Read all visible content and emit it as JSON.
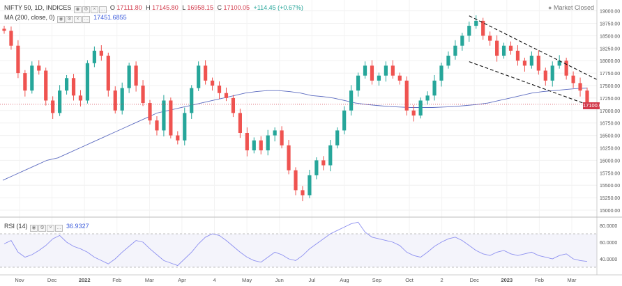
{
  "header": {
    "symbol": "NIFTY 50, 1D, INDICES",
    "open_label": "O",
    "open": "17111.80",
    "high_label": "H",
    "high": "17145.80",
    "low_label": "L",
    "low": "16958.15",
    "close_label": "C",
    "close": "17100.05",
    "change": "+114.45 (+0.67%)",
    "market_status": "Market Closed",
    "last_price_tag": "17100.05"
  },
  "ma": {
    "label": "MA (200, close, 0)",
    "value": "17451.6855"
  },
  "rsi": {
    "label": "RSI (14)",
    "value": "36.9327"
  },
  "colors": {
    "up": "#26a69a",
    "down": "#ef5350",
    "ma": "#5c6bc0",
    "rsi": "#8c8ff0",
    "trendline": "#111111"
  },
  "chart_data": [
    {
      "type": "candlestick",
      "title": "NIFTY 50, 1D, INDICES",
      "x_ticks": [
        "Nov",
        "Dec",
        "2022",
        "Feb",
        "Mar",
        "Apr",
        "4",
        "May",
        "Jun",
        "Jul",
        "Aug",
        "Sep",
        "Oct",
        "2",
        "Dec",
        "2023",
        "Feb",
        "Mar"
      ],
      "y_ticks": [
        15000,
        15250,
        15500,
        15750,
        16000,
        16250,
        16500,
        16750,
        17000,
        17250,
        17500,
        17750,
        18000,
        18250,
        18500,
        18750,
        19000
      ],
      "ylim": [
        15000,
        19050
      ],
      "grid": true,
      "series": [
        {
          "name": "Close (approx.)",
          "values": [
            18600,
            18300,
            17750,
            17400,
            17900,
            17800,
            17200,
            16950,
            17400,
            17650,
            17300,
            17200,
            17950,
            18200,
            18100,
            17400,
            17000,
            17450,
            17900,
            17500,
            17150,
            16800,
            16600,
            17200,
            16500,
            16400,
            16950,
            17450,
            17900,
            17600,
            17500,
            17350,
            17250,
            16950,
            16550,
            16200,
            16400,
            16200,
            16500,
            16600,
            16300,
            15800,
            15400,
            15300,
            15700,
            16000,
            15900,
            16300,
            16600,
            17000,
            17400,
            17700,
            17900,
            17600,
            17700,
            17900,
            17700,
            17600,
            17000,
            16900,
            17200,
            17300,
            17600,
            17900,
            18100,
            18300,
            18500,
            18700,
            18800,
            18500,
            18400,
            18100,
            18300,
            18200,
            18000,
            17900,
            18100,
            17800,
            17600,
            17900,
            18000,
            17700,
            17550,
            17400,
            17100
          ]
        },
        {
          "name": "MA (200, close, 0)",
          "values": [
            15600,
            15700,
            15800,
            15900,
            16000,
            16050,
            16150,
            16250,
            16350,
            16450,
            16550,
            16650,
            16750,
            16850,
            16950,
            17000,
            17050,
            17100,
            17150,
            17200,
            17250,
            17300,
            17350,
            17380,
            17400,
            17400,
            17380,
            17350,
            17300,
            17280,
            17250,
            17200,
            17150,
            17120,
            17100,
            17080,
            17070,
            17060,
            17060,
            17060,
            17070,
            17080,
            17100,
            17120,
            17150,
            17200,
            17250,
            17300,
            17350,
            17380,
            17400,
            17420,
            17440,
            17451
          ]
        }
      ],
      "annotations": [
        "17100.05"
      ],
      "trendlines": [
        {
          "from": {
            "x_index": 67,
            "y": 18900
          },
          "to": {
            "x_index": 84,
            "y": 17720
          }
        },
        {
          "from": {
            "x_index": 67,
            "y": 17980
          },
          "to": {
            "x_index": 84,
            "y": 17120
          }
        }
      ],
      "hline": 17125
    },
    {
      "type": "line",
      "title": "RSI (14)",
      "y_ticks": [
        40,
        60,
        80
      ],
      "ylim": [
        30,
        85
      ],
      "bands": [
        30,
        70
      ],
      "series": [
        {
          "name": "RSI (14)",
          "values": [
            58,
            62,
            48,
            42,
            45,
            50,
            56,
            64,
            68,
            60,
            55,
            52,
            48,
            42,
            38,
            34,
            40,
            48,
            55,
            62,
            60,
            52,
            45,
            38,
            35,
            32,
            40,
            48,
            58,
            66,
            70,
            68,
            62,
            55,
            48,
            42,
            38,
            36,
            42,
            48,
            45,
            40,
            38,
            44,
            52,
            58,
            64,
            70,
            74,
            78,
            82,
            84,
            72,
            66,
            64,
            62,
            60,
            56,
            48,
            44,
            42,
            48,
            55,
            60,
            64,
            66,
            62,
            56,
            50,
            46,
            44,
            48,
            50,
            46,
            44,
            46,
            48,
            44,
            42,
            40,
            44,
            46,
            40,
            38,
            36.9
          ]
        }
      ]
    }
  ]
}
